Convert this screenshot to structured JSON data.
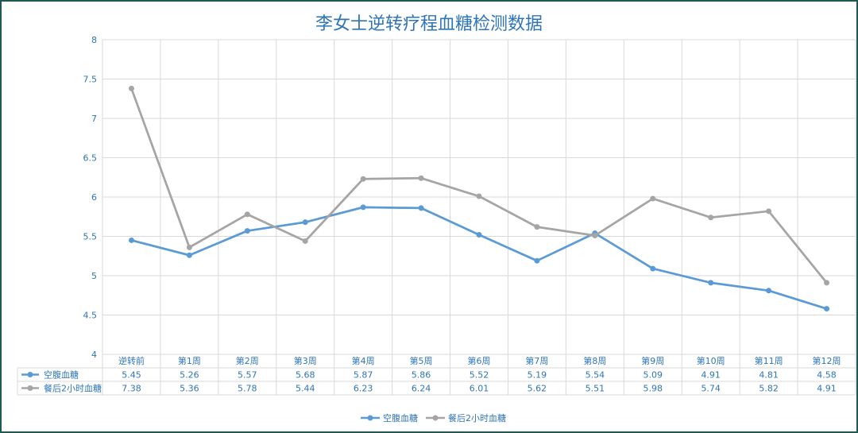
{
  "chart_data": {
    "type": "line",
    "title": "李女士逆转疗程血糖检测数据",
    "categories": [
      "逆转前",
      "第1周",
      "第2周",
      "第3周",
      "第4周",
      "第5周",
      "第6周",
      "第7周",
      "第8周",
      "第9周",
      "第10周",
      "第11周",
      "第12周"
    ],
    "series": [
      {
        "name": "空腹血糖",
        "color": "#5b9bd5",
        "values": [
          5.45,
          5.26,
          5.57,
          5.68,
          5.87,
          5.86,
          5.52,
          5.19,
          5.54,
          5.09,
          4.91,
          4.81,
          4.58
        ]
      },
      {
        "name": "餐后2小时血糖",
        "color": "#a5a5a5",
        "values": [
          7.38,
          5.36,
          5.78,
          5.44,
          6.23,
          6.24,
          6.01,
          5.62,
          5.51,
          5.98,
          5.74,
          5.82,
          4.91
        ]
      }
    ],
    "ylim": [
      4,
      8
    ],
    "yticks": [
      "4",
      "4.5",
      "5",
      "5.5",
      "6",
      "6.5",
      "7",
      "7.5",
      "8"
    ],
    "grid": true,
    "legend": "bottom",
    "data_table": true
  }
}
